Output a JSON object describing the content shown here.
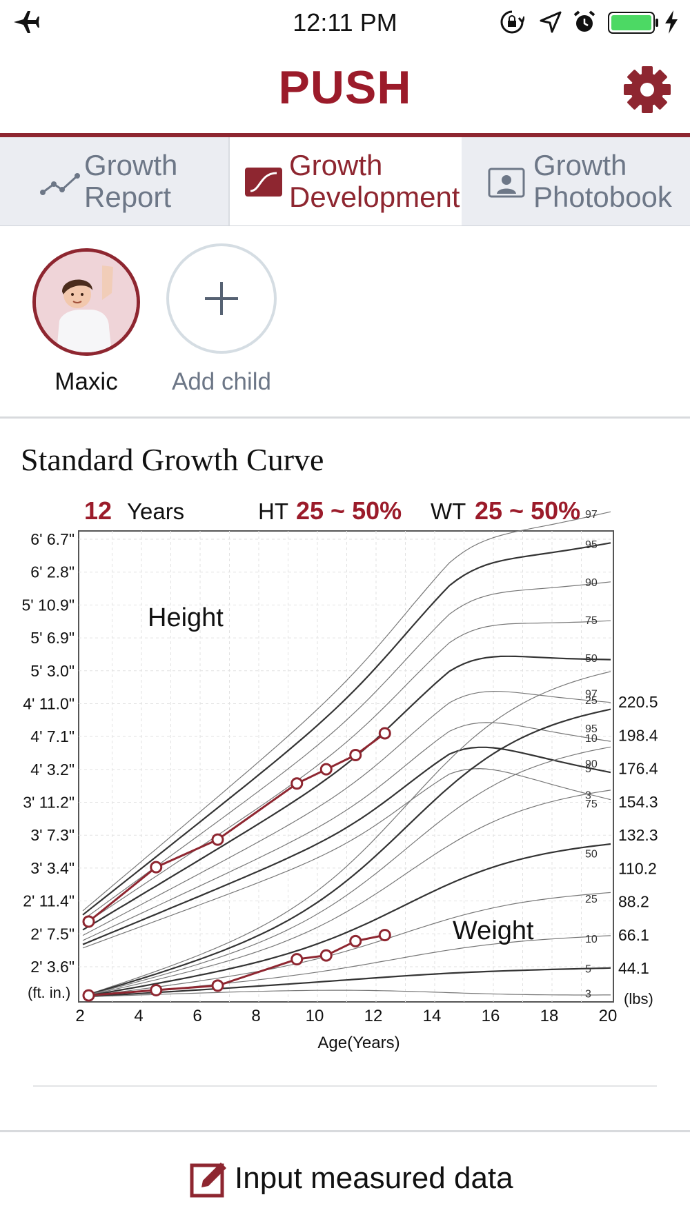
{
  "status_bar": {
    "time": "12:11 PM"
  },
  "app": {
    "title": "PUSH",
    "accent": "#8e2630"
  },
  "tabs": [
    {
      "line1": "Growth",
      "line2": "Report",
      "icon": "chart-line-icon",
      "active": false
    },
    {
      "line1": "Growth",
      "line2": "Development",
      "icon": "growth-curve-icon",
      "active": true
    },
    {
      "line1": "Growth",
      "line2": "Photobook",
      "icon": "photo-portrait-icon",
      "active": false
    }
  ],
  "children": [
    {
      "name": "Maxic"
    },
    {
      "name": "Add child"
    }
  ],
  "chart": {
    "title": "Standard Growth Curve",
    "age_value": "12",
    "age_unit": "Years",
    "ht_label": "HT",
    "ht_value": "25 ~ 50%",
    "wt_label": "WT",
    "wt_value": "25 ~ 50%"
  },
  "chart_data": {
    "type": "line",
    "xlabel": "Age(Years)",
    "x_ticks": [
      "2",
      "4",
      "6",
      "8",
      "10",
      "12",
      "14",
      "16",
      "18",
      "20"
    ],
    "xlim": [
      2,
      20
    ],
    "height_label": "Height",
    "weight_label": "Weight",
    "height_unit": "(ft. in.)",
    "weight_unit": "(lbs)",
    "height_ticks": [
      "6' 6.7\"",
      "6' 2.8\"",
      "5' 10.9\"",
      "5' 6.9\"",
      "5' 3.0\"",
      "4' 11.0\"",
      "4' 7.1\"",
      "4' 3.2\"",
      "3' 11.2\"",
      "3' 7.3\"",
      "3' 3.4\"",
      "2' 11.4\"",
      "2' 7.5\"",
      "2' 3.6\""
    ],
    "weight_ticks": [
      "220.5",
      "198.4",
      "176.4",
      "154.3",
      "132.3",
      "110.2",
      "88.2",
      "66.1",
      "44.1"
    ],
    "height_percentiles": [
      "97",
      "95",
      "90",
      "75",
      "50",
      "25",
      "10",
      "5",
      "3"
    ],
    "weight_percentiles": [
      "97",
      "95",
      "90",
      "75",
      "50",
      "25",
      "10",
      "5",
      "3"
    ],
    "height_series": {
      "name": "Height",
      "points": [
        [
          2.2,
          33.0
        ],
        [
          4.5,
          39.5
        ],
        [
          6.6,
          42.8
        ],
        [
          9.3,
          49.5
        ],
        [
          10.3,
          51.2
        ],
        [
          11.3,
          52.9
        ],
        [
          12.3,
          55.5
        ]
      ]
    },
    "weight_series": {
      "name": "Weight",
      "points": [
        [
          2.2,
          26.0
        ],
        [
          4.5,
          29.5
        ],
        [
          6.6,
          32.5
        ],
        [
          9.3,
          50.0
        ],
        [
          10.3,
          52.5
        ],
        [
          11.3,
          62.0
        ],
        [
          12.3,
          66.0
        ]
      ]
    }
  },
  "footer": {
    "input_label": "Input measured data"
  }
}
